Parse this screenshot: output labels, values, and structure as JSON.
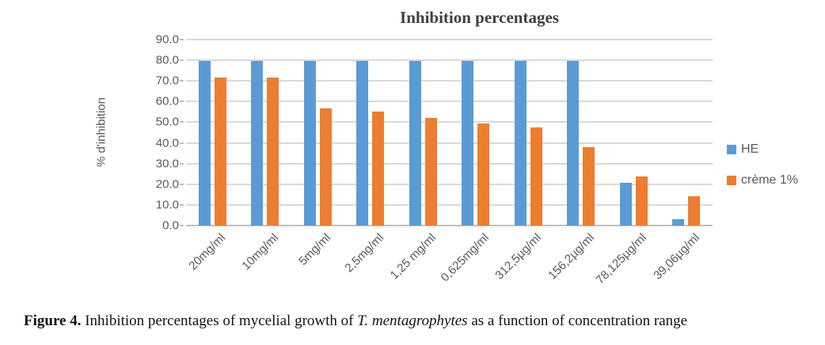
{
  "chart_data": {
    "type": "bar",
    "title": "Inhibition percentages",
    "xlabel": "",
    "ylabel": "% d'inhibition",
    "ylim": [
      0,
      90
    ],
    "ytick_step": 10,
    "ytick_labels": [
      "0.0",
      "10.0",
      "20.0",
      "30.0",
      "40.0",
      "50.0",
      "60.0",
      "70.0",
      "80.0",
      "90.0"
    ],
    "grid": true,
    "gridline_color": "#d9d9d9",
    "axis_text_color": "#595959",
    "legend_position": "right",
    "categories": [
      "20mg/ml",
      "10mg/ml",
      "5mg/ml",
      "2,5mg/ml",
      "1,25 mg/ml",
      "0,625mg/ml",
      "312,5µg/ml",
      "156,2µg/ml",
      "78,125µg/ml",
      "39,06µg/ml"
    ],
    "series": [
      {
        "name": "HE",
        "color": "#5B9BD5",
        "values": [
          79.5,
          79.5,
          79.5,
          79.5,
          79.5,
          79.5,
          79.5,
          79.5,
          20.7,
          3.2
        ]
      },
      {
        "name": "crème 1%",
        "color": "#ED7D31",
        "values": [
          71.5,
          71.5,
          56.7,
          55.0,
          52.0,
          49.4,
          47.5,
          38.0,
          23.8,
          14.0
        ]
      }
    ]
  },
  "caption": {
    "label": "Figure 4.",
    "text_before_italic": " Inhibition percentages of mycelial growth of ",
    "italic": "T. mentagrophytes",
    "text_after_italic": " as a function of concentration range"
  }
}
